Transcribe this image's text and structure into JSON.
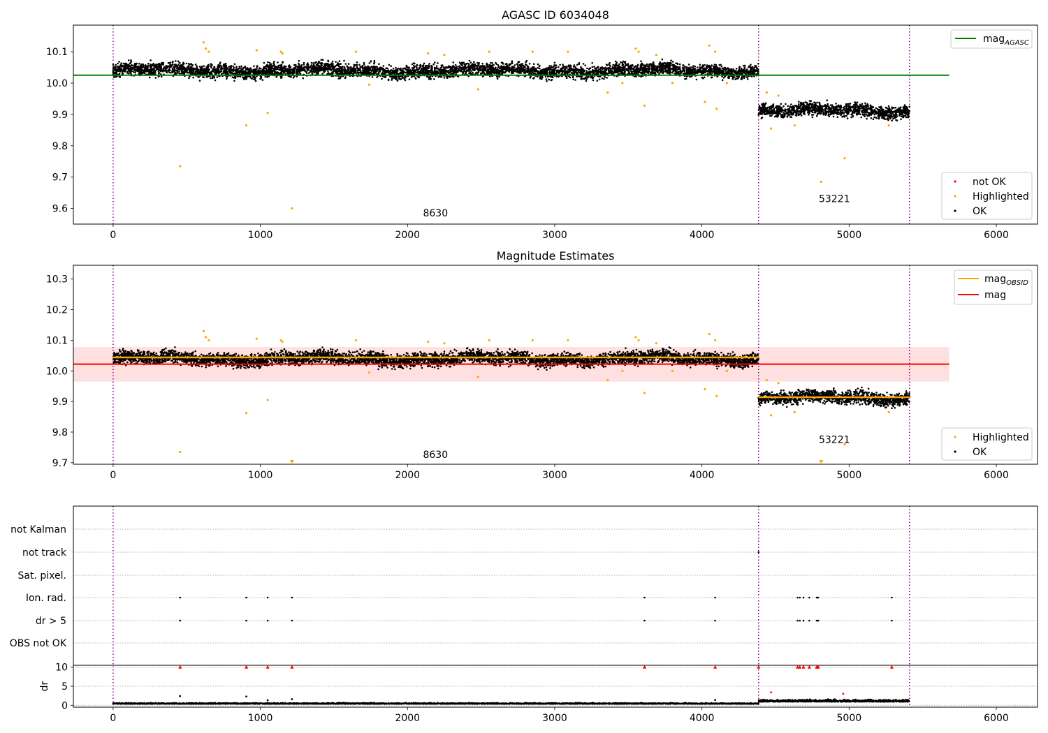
{
  "chart_data": [
    {
      "type": "scatter",
      "title": "AGASC ID 6034048",
      "xlim": [
        -270,
        6280
      ],
      "ylim": [
        9.55,
        10.185
      ],
      "xticks": [
        "0",
        "1000",
        "2000",
        "3000",
        "4000",
        "5000",
        "6000"
      ],
      "yticks": [
        "9.6",
        "9.7",
        "9.8",
        "9.9",
        "10.0",
        "10.1"
      ],
      "obs_boundaries": [
        0,
        4385,
        5410
      ],
      "obs_labels": [
        {
          "text": "8630",
          "x": 2190,
          "y": 9.575
        },
        {
          "text": "53221",
          "x": 4900,
          "y": 9.62
        }
      ],
      "reference_lines": [
        {
          "name": "mag$_{AGASC}$",
          "label_main": "mag",
          "label_sub": "AGASC",
          "y": 10.025,
          "x_range": [
            -270,
            5680
          ],
          "color": "#008000"
        }
      ],
      "legend_top": {
        "location": "upper right",
        "entries": [
          {
            "label_main": "mag",
            "label_sub": "AGASC",
            "color": "#008000"
          }
        ]
      },
      "legend_bottom": {
        "location": "lower right",
        "entries": [
          {
            "label": "not OK",
            "color": "#ff0000"
          },
          {
            "label": "Highlighted",
            "color": "#ffa500"
          },
          {
            "label": "OK",
            "color": "#000000"
          }
        ]
      },
      "series": [
        {
          "name": "OK",
          "color": "#000000",
          "segments": [
            {
              "x_range": [
                0,
                4385
              ],
              "mean": 10.04,
              "scatter": 0.014
            },
            {
              "x_range": [
                4385,
                5410
              ],
              "mean": 9.912,
              "scatter": 0.014
            }
          ]
        },
        {
          "name": "Highlighted",
          "color": "#ffa500",
          "x": [
            455,
            615,
            630,
            650,
            905,
            975,
            1050,
            1140,
            1150,
            1215,
            1650,
            1740,
            2140,
            2250,
            2480,
            2555,
            2850,
            3090,
            3360,
            3460,
            3550,
            3570,
            3610,
            3690,
            3800,
            4020,
            4050,
            4090,
            4100,
            4170,
            4440,
            4470,
            4520,
            4630,
            4810,
            4970,
            5270
          ],
          "y": [
            9.735,
            10.13,
            10.11,
            10.1,
            9.865,
            10.105,
            9.905,
            10.1,
            10.095,
            9.6,
            10.1,
            9.995,
            10.095,
            10.09,
            9.98,
            10.1,
            10.1,
            10.1,
            9.97,
            10.0,
            10.11,
            10.1,
            9.928,
            10.09,
            10.0,
            9.94,
            10.12,
            10.1,
            9.918,
            10.0,
            9.97,
            9.855,
            9.96,
            9.865,
            9.685,
            9.76,
            9.865
          ]
        },
        {
          "name": "not OK",
          "color": "#ff0000",
          "x": [],
          "y": []
        }
      ]
    },
    {
      "type": "scatter",
      "title": "Magnitude Estimates",
      "xlim": [
        -270,
        6280
      ],
      "ylim": [
        9.695,
        10.345
      ],
      "xticks": [
        "0",
        "1000",
        "2000",
        "3000",
        "4000",
        "5000",
        "6000"
      ],
      "yticks": [
        "9.7",
        "9.8",
        "9.9",
        "10.0",
        "10.1",
        "10.2",
        "10.3"
      ],
      "obs_boundaries": [
        0,
        4385,
        5410
      ],
      "obs_labels": [
        {
          "text": "8630",
          "x": 2190,
          "y": 9.715
        },
        {
          "text": "53221",
          "x": 4900,
          "y": 9.765
        }
      ],
      "band": {
        "y_range": [
          9.965,
          10.078
        ],
        "x_range": [
          -270,
          5680
        ],
        "color": "#ffcccc"
      },
      "reference_lines": [
        {
          "name": "mag",
          "y": 10.022,
          "x_range": [
            -270,
            5680
          ],
          "color": "#ff0000"
        }
      ],
      "obsid_lines": [
        {
          "x_range": [
            0,
            4385
          ],
          "y": 10.044,
          "color": "#ffa500"
        },
        {
          "x_range": [
            4385,
            5410
          ],
          "y": 9.914,
          "color": "#ffa500"
        }
      ],
      "legend_top": {
        "location": "upper right",
        "entries": [
          {
            "label_main": "mag",
            "label_sub": "OBSID",
            "color": "#ffa500"
          },
          {
            "label_main": "mag",
            "label_sub": "",
            "color": "#ff0000"
          }
        ]
      },
      "legend_bottom": {
        "location": "lower right",
        "entries": [
          {
            "label": "Highlighted",
            "color": "#ffa500"
          },
          {
            "label": "OK",
            "color": "#000000"
          }
        ]
      },
      "clipped_markers": [
        {
          "x": 1215,
          "color": "#ffa500"
        },
        {
          "x": 4810,
          "color": "#ffa500"
        }
      ],
      "series": [
        {
          "name": "OK",
          "color": "#000000",
          "segments": [
            {
              "x_range": [
                0,
                4385
              ],
              "mean": 10.04,
              "scatter": 0.014
            },
            {
              "x_range": [
                4385,
                5410
              ],
              "mean": 9.912,
              "scatter": 0.014
            }
          ]
        },
        {
          "name": "Highlighted",
          "color": "#ffa500",
          "x": [
            455,
            615,
            630,
            650,
            905,
            975,
            1050,
            1140,
            1150,
            1650,
            1740,
            2140,
            2250,
            2480,
            2555,
            2850,
            3090,
            3360,
            3460,
            3550,
            3570,
            3610,
            3690,
            3800,
            4020,
            4050,
            4090,
            4100,
            4170,
            4440,
            4470,
            4520,
            4630,
            4970,
            5270
          ],
          "y": [
            9.735,
            10.13,
            10.11,
            10.1,
            9.862,
            10.105,
            9.905,
            10.1,
            10.095,
            10.1,
            9.995,
            10.095,
            10.09,
            9.98,
            10.1,
            10.1,
            10.1,
            9.97,
            10.0,
            10.11,
            10.1,
            9.928,
            10.09,
            10.0,
            9.94,
            10.12,
            10.1,
            9.918,
            10.0,
            9.97,
            9.855,
            9.96,
            9.865,
            9.76,
            9.865
          ]
        }
      ]
    },
    {
      "type": "scatter",
      "title": "",
      "xlim": [
        -270,
        6280
      ],
      "xticks": [
        "0",
        "1000",
        "2000",
        "3000",
        "4000",
        "5000",
        "6000"
      ],
      "obs_boundaries": [
        0,
        4385,
        5410
      ],
      "flag_rows": [
        "not Kalman",
        "not track",
        "Sat. pixel.",
        "Ion. rad.",
        "dr > 5",
        "OBS not OK"
      ],
      "flag_points": [
        {
          "row": "not track",
          "x": [
            4385
          ]
        },
        {
          "row": "Ion. rad.",
          "x": [
            455,
            905,
            1050,
            1215,
            3610,
            4090,
            4650,
            4665,
            4690,
            4730,
            4780,
            4790,
            5290
          ]
        },
        {
          "row": "dr > 5",
          "x": [
            455,
            905,
            1050,
            1215,
            3610,
            4090,
            4650,
            4665,
            4690,
            4730,
            4780,
            4790,
            5290
          ]
        }
      ],
      "dr_panel": {
        "ylabel": "dr",
        "ylim": [
          -0.5,
          10.5
        ],
        "yticks": [
          "0",
          "5",
          "10"
        ],
        "clipped_red_x": [
          455,
          905,
          1050,
          1215,
          3610,
          4090,
          4385,
          4650,
          4665,
          4690,
          4730,
          4780,
          4790,
          5290
        ],
        "outliers": [
          {
            "x": 455,
            "y": 2.4,
            "color": "#000000"
          },
          {
            "x": 905,
            "y": 2.3,
            "color": "#000000"
          },
          {
            "x": 1050,
            "y": 1.3,
            "color": "#000000"
          },
          {
            "x": 1215,
            "y": 1.6,
            "color": "#000000"
          },
          {
            "x": 4090,
            "y": 1.4,
            "color": "#000000"
          },
          {
            "x": 4470,
            "y": 3.4,
            "color": "#ff0000"
          },
          {
            "x": 4960,
            "y": 3.0,
            "color": "#ff0000"
          }
        ],
        "segments": [
          {
            "x_range": [
              0,
              4385
            ],
            "mean": 0.35,
            "scatter": 0.2
          },
          {
            "x_range": [
              4385,
              5410
            ],
            "mean": 0.9,
            "scatter": 0.45
          }
        ]
      }
    }
  ]
}
